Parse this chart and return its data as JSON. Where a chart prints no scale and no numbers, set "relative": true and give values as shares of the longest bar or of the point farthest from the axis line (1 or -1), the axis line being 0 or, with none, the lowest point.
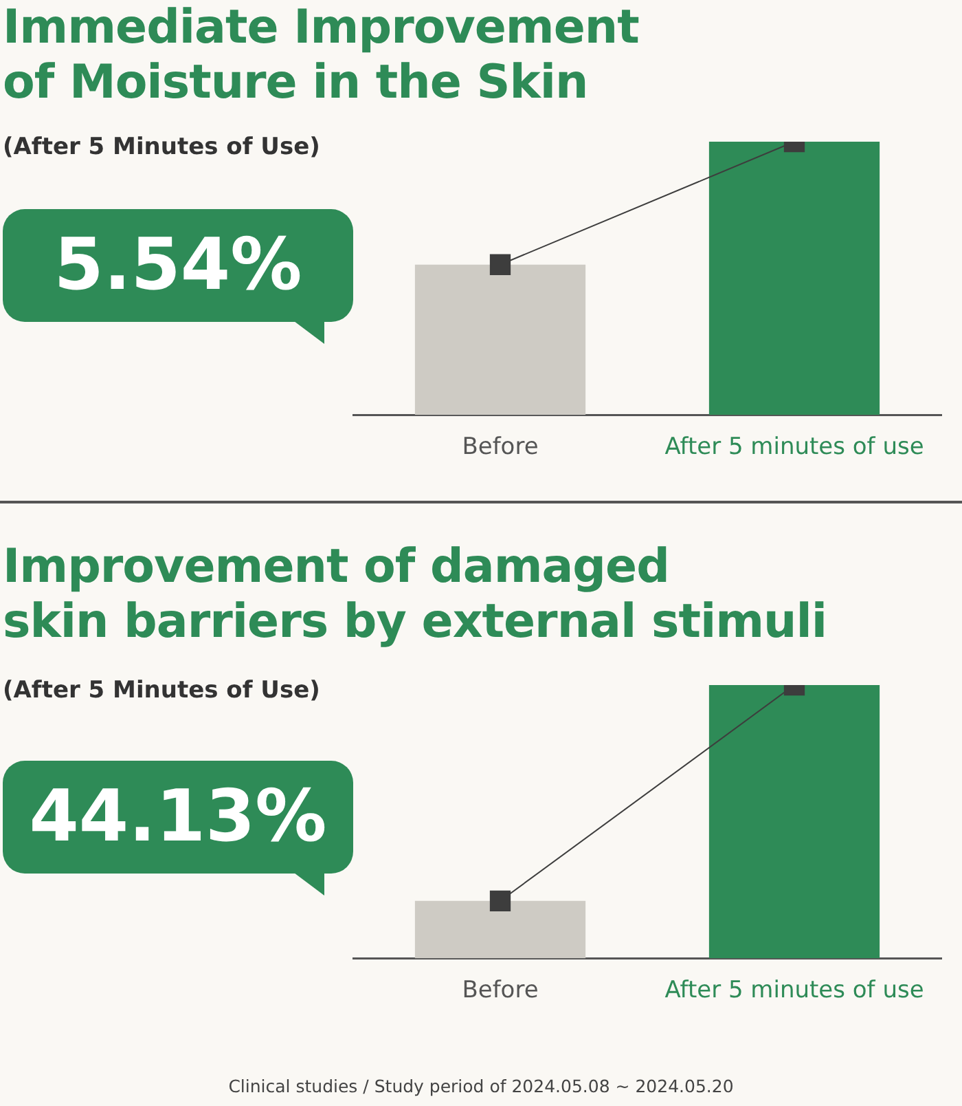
{
  "chart_data": [
    {
      "type": "bar",
      "title": "Immediate Improvement\nof Moisture in the Skin",
      "subtitle": "(After 5 Minutes of Use)",
      "categories": [
        "Before",
        "After 5 minutes of use"
      ],
      "relative": true,
      "legend": false,
      "annotations": [
        "5.54%"
      ],
      "series": [
        {
          "colors": [
            "#cecbc4",
            "#2e8b57"
          ],
          "values": [
            0.55,
            1
          ]
        },
        {
          "type": "line",
          "color": "#3d3d3d",
          "values": [
            0.55,
            1
          ],
          "marker": "square"
        }
      ]
    },
    {
      "type": "bar",
      "title": "Improvement of damaged\nskin barriers by external stimuli",
      "subtitle": "(After 5 Minutes of Use)",
      "categories": [
        "Before",
        "After 5 minutes of use"
      ],
      "relative": true,
      "legend": false,
      "annotations": [
        "44.13%",
        "Clinical studies / Study period of 2024.05.08 ~ 2024.05.20"
      ],
      "series": [
        {
          "colors": [
            "#cecbc4",
            "#2e8b57"
          ],
          "values": [
            0.21,
            1
          ]
        },
        {
          "type": "line",
          "color": "#3d3d3d",
          "values": [
            0.21,
            1
          ],
          "marker": "square"
        }
      ]
    }
  ]
}
